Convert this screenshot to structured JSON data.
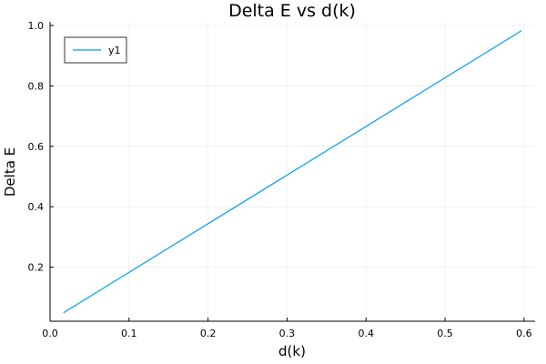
{
  "chart_data": {
    "type": "line",
    "title": "Delta E vs d(k)",
    "xlabel": "d(k)",
    "ylabel": "Delta E",
    "xlim": [
      0,
      0.614
    ],
    "ylim": [
      0.021,
      1.012
    ],
    "xticks": [
      0.0,
      0.1,
      0.2,
      0.3,
      0.4,
      0.5,
      0.6
    ],
    "xtick_labels": [
      "0.0",
      "0.1",
      "0.2",
      "0.3",
      "0.4",
      "0.5",
      "0.6"
    ],
    "yticks": [
      0.2,
      0.4,
      0.6,
      0.8,
      1.0
    ],
    "ytick_labels": [
      "0.2",
      "0.4",
      "0.6",
      "0.8",
      "1.0"
    ],
    "grid": true,
    "legend_position": "top-left",
    "series": [
      {
        "name": "y1",
        "color": "#009AFA",
        "x": [
          0.017,
          0.597
        ],
        "y": [
          0.049,
          0.983
        ]
      }
    ]
  }
}
